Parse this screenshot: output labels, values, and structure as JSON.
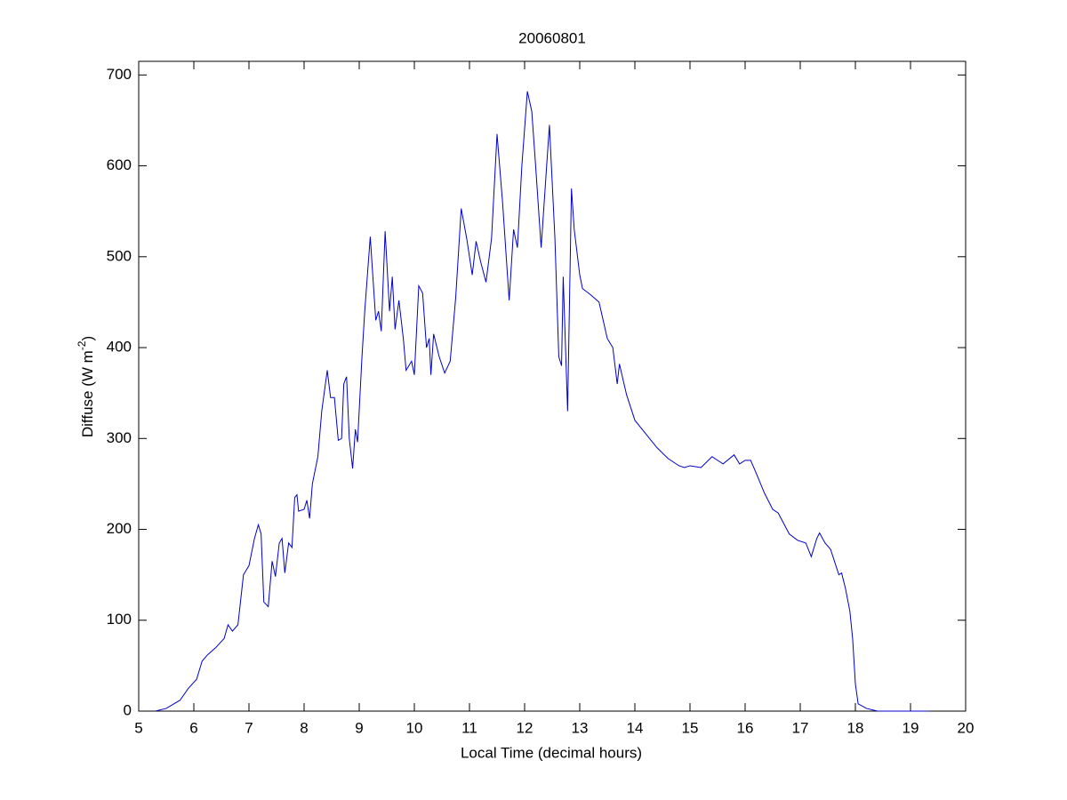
{
  "chart_data": {
    "type": "line",
    "title": "20060801",
    "x_label": "Local Time (decimal hours)",
    "y_label": [
      "Diffuse (W m",
      "-2",
      ")"
    ],
    "xlim": [
      5,
      20
    ],
    "ylim": [
      0,
      715
    ],
    "xticks": [
      5,
      6,
      7,
      8,
      9,
      10,
      11,
      12,
      13,
      14,
      15,
      16,
      17,
      18,
      19,
      20
    ],
    "yticks": [
      0,
      100,
      200,
      300,
      400,
      500,
      600,
      700
    ],
    "grid": false,
    "series": [
      {
        "color": "#0000cc",
        "x": [
          5.3,
          5.5,
          5.75,
          5.9,
          6.05,
          6.15,
          6.25,
          6.4,
          6.55,
          6.62,
          6.7,
          6.8,
          6.9,
          7.0,
          7.1,
          7.17,
          7.22,
          7.27,
          7.35,
          7.42,
          7.48,
          7.55,
          7.6,
          7.65,
          7.72,
          7.78,
          7.83,
          7.87,
          7.9,
          8.0,
          8.05,
          8.1,
          8.15,
          8.25,
          8.32,
          8.42,
          8.48,
          8.55,
          8.62,
          8.68,
          8.72,
          8.77,
          8.82,
          8.88,
          8.93,
          8.97,
          9.05,
          9.1,
          9.2,
          9.3,
          9.35,
          9.4,
          9.47,
          9.55,
          9.6,
          9.65,
          9.72,
          9.8,
          9.85,
          9.95,
          10.0,
          10.08,
          10.15,
          10.22,
          10.27,
          10.3,
          10.35,
          10.45,
          10.55,
          10.65,
          10.75,
          10.85,
          10.95,
          11.05,
          11.12,
          11.2,
          11.3,
          11.4,
          11.5,
          11.6,
          11.72,
          11.8,
          11.87,
          11.95,
          12.05,
          12.13,
          12.2,
          12.3,
          12.45,
          12.55,
          12.62,
          12.67,
          12.7,
          12.78,
          12.85,
          12.9,
          13.0,
          13.05,
          13.2,
          13.35,
          13.5,
          13.6,
          13.68,
          13.72,
          13.85,
          14.0,
          14.2,
          14.4,
          14.6,
          14.8,
          14.9,
          15.0,
          15.2,
          15.4,
          15.6,
          15.8,
          15.9,
          16.0,
          16.1,
          16.2,
          16.35,
          16.5,
          16.6,
          16.8,
          16.95,
          17.1,
          17.2,
          17.3,
          17.35,
          17.45,
          17.55,
          17.62,
          17.7,
          17.75,
          17.82,
          17.9,
          17.95,
          18.0,
          18.05,
          18.2,
          18.4,
          19.35
        ],
        "values": [
          0,
          3,
          12,
          25,
          35,
          55,
          62,
          70,
          80,
          95,
          88,
          95,
          150,
          160,
          190,
          205,
          195,
          120,
          115,
          165,
          148,
          185,
          190,
          152,
          185,
          180,
          235,
          238,
          220,
          222,
          232,
          212,
          250,
          280,
          330,
          375,
          345,
          345,
          298,
          300,
          360,
          368,
          300,
          267,
          310,
          296,
          390,
          440,
          522,
          430,
          440,
          418,
          528,
          440,
          478,
          420,
          452,
          410,
          375,
          385,
          370,
          468,
          460,
          400,
          410,
          370,
          415,
          390,
          372,
          385,
          455,
          553,
          520,
          480,
          517,
          495,
          472,
          520,
          635,
          560,
          452,
          530,
          510,
          600,
          682,
          660,
          600,
          510,
          645,
          520,
          390,
          380,
          478,
          330,
          575,
          530,
          480,
          465,
          458,
          450,
          410,
          400,
          360,
          382,
          348,
          320,
          305,
          290,
          278,
          270,
          268,
          270,
          268,
          280,
          272,
          282,
          272,
          276,
          276,
          262,
          240,
          222,
          218,
          195,
          188,
          185,
          170,
          190,
          196,
          185,
          178,
          165,
          150,
          152,
          135,
          110,
          80,
          30,
          8,
          3,
          0,
          0
        ]
      }
    ]
  }
}
